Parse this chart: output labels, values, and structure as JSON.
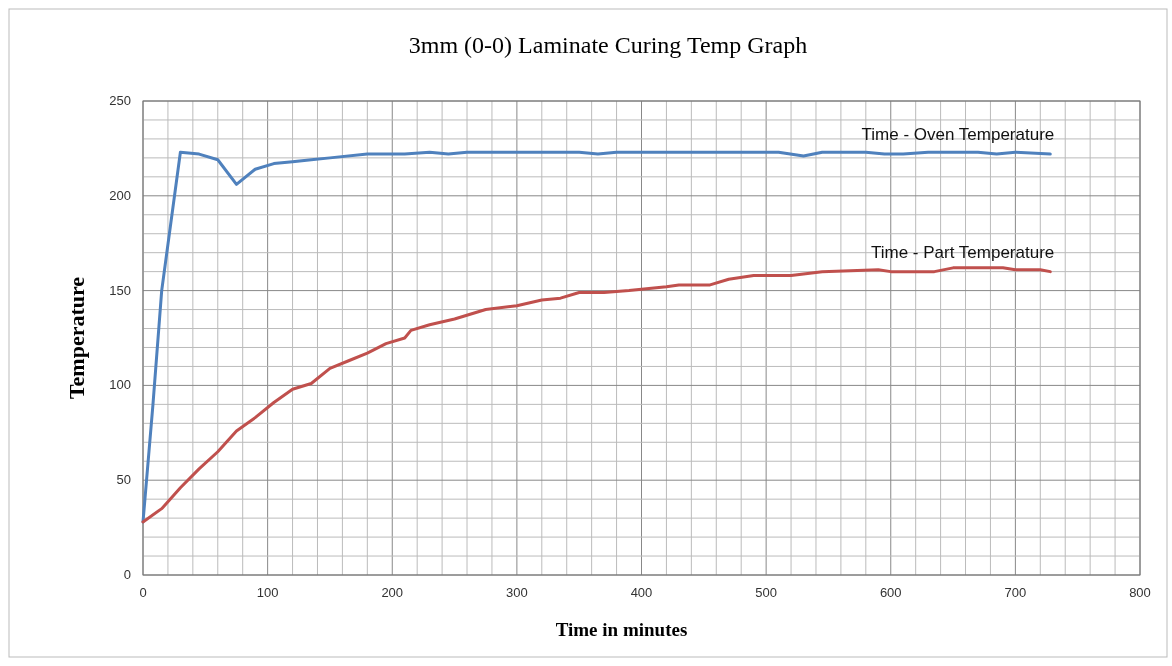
{
  "chart_data": {
    "type": "line",
    "title": "3mm (0-0) Laminate Curing Temp Graph",
    "xlabel": "Time in minutes",
    "ylabel": "Temperature",
    "xlim": [
      0,
      800
    ],
    "xticks": [
      0,
      100,
      200,
      300,
      400,
      500,
      600,
      700,
      800
    ],
    "ylim": [
      0,
      250
    ],
    "yticks": [
      0,
      50,
      100,
      150,
      200,
      250
    ],
    "grid": true,
    "legend": false,
    "marker": "none",
    "line_style": "solid",
    "series": [
      {
        "name": "Time - Oven Temperature",
        "color": "#4f81bd",
        "x": [
          0,
          8,
          15,
          30,
          45,
          60,
          75,
          90,
          105,
          120,
          135,
          150,
          180,
          210,
          230,
          245,
          260,
          300,
          350,
          365,
          380,
          510,
          530,
          545,
          580,
          595,
          610,
          630,
          670,
          685,
          700,
          728
        ],
        "values": [
          28,
          90,
          150,
          223,
          222,
          219,
          206,
          214,
          217,
          218,
          219,
          220,
          222,
          222,
          223,
          222,
          223,
          223,
          223,
          222,
          223,
          223,
          221,
          223,
          223,
          222,
          222,
          223,
          223,
          222,
          223,
          222
        ]
      },
      {
        "name": "Time - Part Temperature",
        "color": "#c0504d",
        "x": [
          0,
          15,
          30,
          45,
          60,
          75,
          90,
          105,
          120,
          135,
          150,
          165,
          180,
          195,
          210,
          215,
          230,
          250,
          275,
          300,
          320,
          335,
          350,
          370,
          390,
          420,
          430,
          455,
          470,
          490,
          520,
          545,
          590,
          600,
          635,
          650,
          690,
          700,
          720,
          728
        ],
        "values": [
          28,
          35,
          46,
          56,
          65,
          76,
          83,
          91,
          98,
          101,
          109,
          113,
          117,
          122,
          125,
          129,
          132,
          135,
          140,
          142,
          145,
          146,
          149,
          149,
          150,
          152,
          153,
          153,
          156,
          158,
          158,
          160,
          161,
          160,
          160,
          162,
          162,
          161,
          161,
          160
        ]
      }
    ]
  }
}
